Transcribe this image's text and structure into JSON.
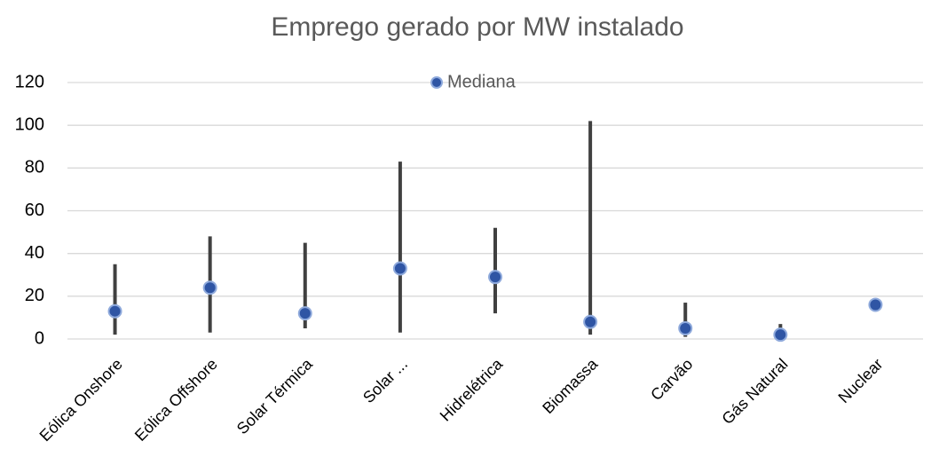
{
  "chart_data": {
    "type": "dotrange",
    "title": "Emprego gerado por MW instalado",
    "categories": [
      "Eólica Onshore",
      "Eólica Offshore",
      "Solar Térmica",
      "Solar ...",
      "Hidrelétrica",
      "Biomassa",
      "Carvão",
      "Gás Natural",
      "Nuclear"
    ],
    "series": [
      {
        "name": "Mediana",
        "color": "#2f55a4",
        "values": [
          13,
          24,
          12,
          33,
          29,
          8,
          5,
          2,
          16
        ]
      }
    ],
    "low": [
      2,
      3,
      5,
      3,
      12,
      2,
      1,
      0,
      null
    ],
    "high": [
      35,
      48,
      45,
      83,
      52,
      102,
      17,
      7,
      null
    ],
    "range_color": "#404040",
    "ylim": [
      0,
      120
    ],
    "yticks": [
      0,
      20,
      40,
      60,
      80,
      100,
      120
    ],
    "grid": true,
    "legend": "top"
  }
}
